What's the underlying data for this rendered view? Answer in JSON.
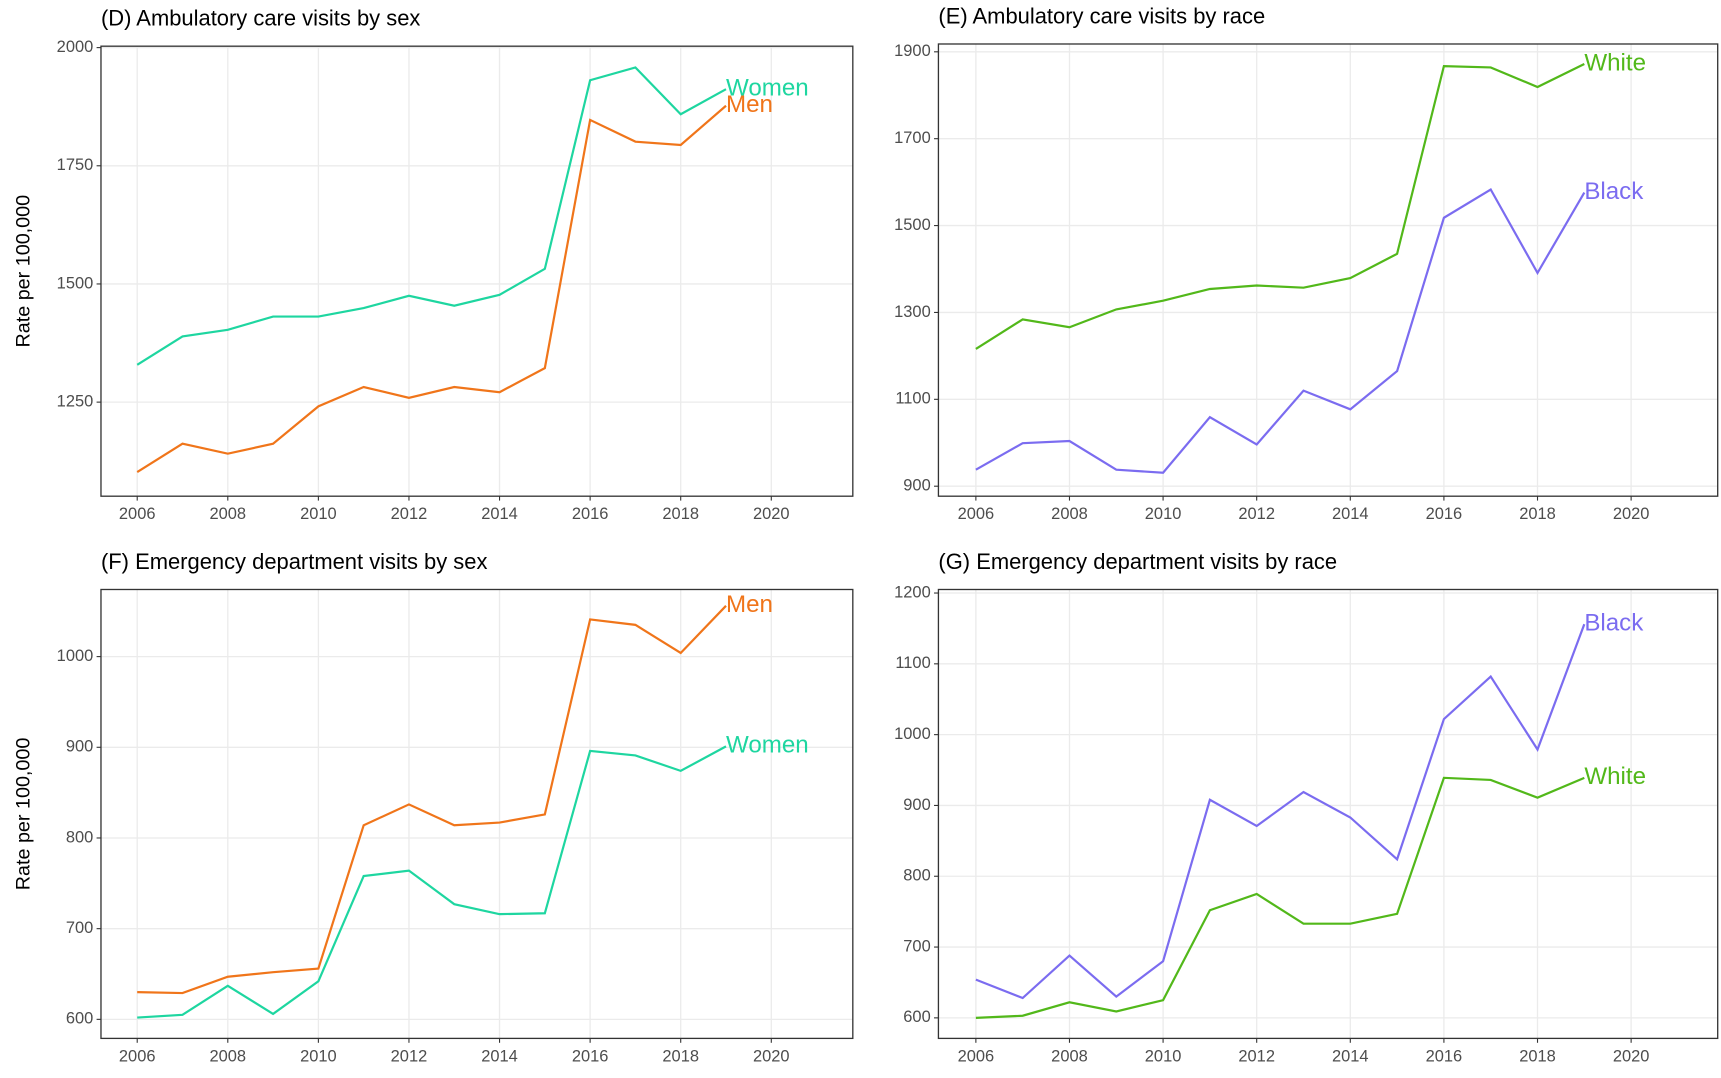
{
  "chart_data": [
    {
      "type": "line",
      "title": "(D) Ambulatory care visits by sex",
      "ylabel": "Rate per 100,000",
      "x": [
        2006,
        2007,
        2008,
        2009,
        2010,
        2011,
        2012,
        2013,
        2014,
        2015,
        2016,
        2017,
        2018,
        2019
      ],
      "series": [
        {
          "name": "Women",
          "color": "#1ed6a0",
          "values": [
            1329,
            1389,
            1403,
            1431,
            1431,
            1449,
            1475,
            1454,
            1477,
            1532,
            1931,
            1958,
            1859,
            1912
          ]
        },
        {
          "name": "Men",
          "color": "#f0751a",
          "values": [
            1102,
            1162,
            1141,
            1162,
            1241,
            1282,
            1259,
            1282,
            1271,
            1322,
            1847,
            1801,
            1794,
            1877
          ]
        }
      ],
      "xlim": [
        2005.2,
        2021.8
      ],
      "ylim": [
        1051,
        2003
      ],
      "xticks": [
        2006,
        2008,
        2010,
        2012,
        2014,
        2016,
        2018,
        2020
      ],
      "yticks": [
        1250,
        1500,
        1750,
        2000
      ],
      "grid": true
    },
    {
      "type": "line",
      "title": "(E) Ambulatory care visits by race",
      "x": [
        2006,
        2007,
        2008,
        2009,
        2010,
        2011,
        2012,
        2013,
        2014,
        2015,
        2016,
        2017,
        2018,
        2019
      ],
      "series": [
        {
          "name": "White",
          "color": "#52b81a",
          "values": [
            1216,
            1284,
            1266,
            1307,
            1327,
            1354,
            1362,
            1357,
            1379,
            1435,
            1867,
            1864,
            1819,
            1872
          ]
        },
        {
          "name": "Black",
          "color": "#7b6cf0",
          "values": [
            938,
            999,
            1004,
            938,
            931,
            1059,
            996,
            1120,
            1077,
            1165,
            1518,
            1583,
            1391,
            1576
          ]
        }
      ],
      "xlim": [
        2005.2,
        2021.85
      ],
      "ylim": [
        877,
        1918
      ],
      "xticks": [
        2006,
        2008,
        2010,
        2012,
        2014,
        2016,
        2018,
        2020
      ],
      "yticks": [
        900,
        1100,
        1300,
        1500,
        1700,
        1900
      ],
      "grid": true
    },
    {
      "type": "line",
      "title": "(F) Emergency department visits by sex",
      "ylabel": "Rate per 100,000",
      "x": [
        2006,
        2007,
        2008,
        2009,
        2010,
        2011,
        2012,
        2013,
        2014,
        2015,
        2016,
        2017,
        2018,
        2019
      ],
      "series": [
        {
          "name": "Men",
          "color": "#f0751a",
          "values": [
            630,
            629,
            647,
            652,
            656,
            814,
            837,
            814,
            817,
            826,
            1041,
            1035,
            1004,
            1056
          ]
        },
        {
          "name": "Women",
          "color": "#1ed6a0",
          "values": [
            602,
            605,
            637,
            606,
            642,
            758,
            764,
            727,
            716,
            717,
            896,
            891,
            874,
            901
          ]
        }
      ],
      "xlim": [
        2005.2,
        2021.8
      ],
      "ylim": [
        579,
        1074
      ],
      "xticks": [
        2006,
        2008,
        2010,
        2012,
        2014,
        2016,
        2018,
        2020
      ],
      "yticks": [
        600,
        700,
        800,
        900,
        1000
      ],
      "grid": true
    },
    {
      "type": "line",
      "title": "(G) Emergency department visits by race",
      "x": [
        2006,
        2007,
        2008,
        2009,
        2010,
        2011,
        2012,
        2013,
        2014,
        2015,
        2016,
        2017,
        2018,
        2019
      ],
      "series": [
        {
          "name": "Black",
          "color": "#7b6cf0",
          "values": [
            654,
            628,
            688,
            630,
            680,
            908,
            871,
            919,
            883,
            824,
            1022,
            1082,
            979,
            1156
          ]
        },
        {
          "name": "White",
          "color": "#52b81a",
          "values": [
            600,
            603,
            622,
            609,
            625,
            752,
            775,
            733,
            733,
            747,
            939,
            936,
            911,
            939
          ]
        }
      ],
      "xlim": [
        2005.2,
        2021.85
      ],
      "ylim": [
        571,
        1205
      ],
      "xticks": [
        2006,
        2008,
        2010,
        2012,
        2014,
        2016,
        2018,
        2020
      ],
      "yticks": [
        600,
        700,
        800,
        900,
        1000,
        1100,
        1200
      ],
      "grid": true
    }
  ]
}
